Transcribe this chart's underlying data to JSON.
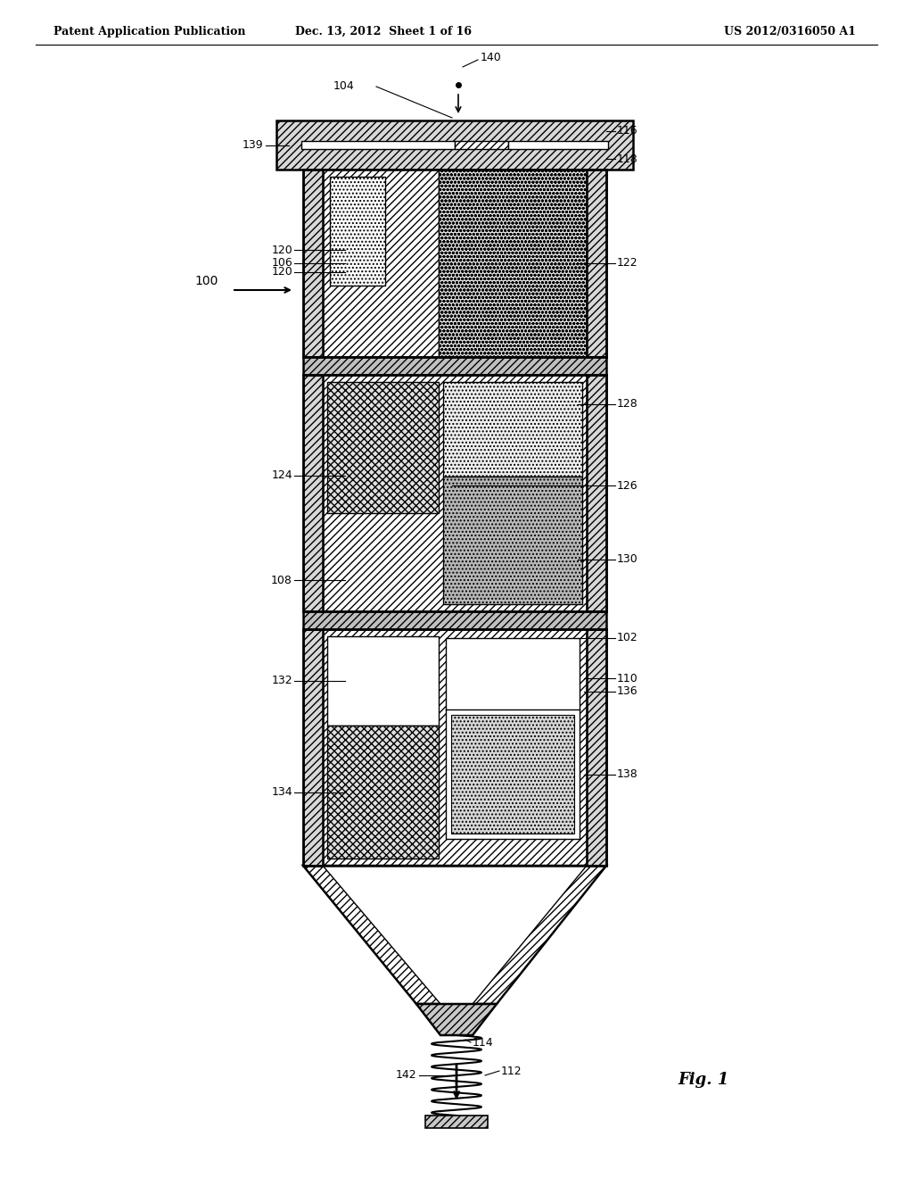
{
  "bg_color": "#ffffff",
  "header_left": "Patent Application Publication",
  "header_center": "Dec. 13, 2012  Sheet 1 of 16",
  "header_right": "US 2012/0316050 A1",
  "fig_label": "Fig. 1",
  "header_fontsize": 9,
  "label_fontsize": 9,
  "fig_fontsize": 13
}
